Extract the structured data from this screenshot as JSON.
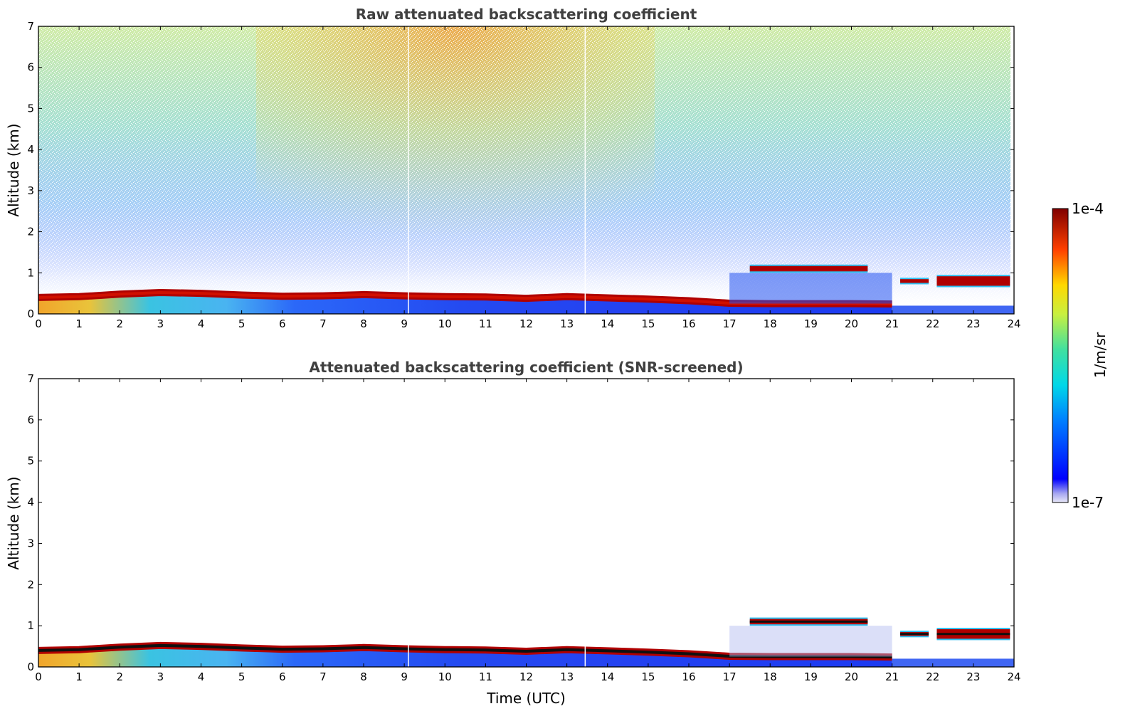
{
  "chart_data": [
    {
      "type": "heatmap",
      "title": "Raw attenuated backscattering coefficient",
      "xlabel": "",
      "ylabel": "Altitude (km)",
      "xlim": [
        0,
        24
      ],
      "ylim": [
        0,
        7
      ],
      "xticks": [
        0,
        1,
        2,
        3,
        4,
        5,
        6,
        7,
        8,
        9,
        10,
        11,
        12,
        13,
        14,
        15,
        16,
        17,
        18,
        19,
        20,
        21,
        22,
        23,
        24
      ],
      "yticks": [
        0,
        1,
        2,
        3,
        4,
        5,
        6,
        7
      ],
      "colorscale": "jet",
      "color_range": [
        "1e-7",
        "1e-4"
      ],
      "layers": {
        "boundary_layer_top_km": [
          {
            "t": 0,
            "h": 0.4
          },
          {
            "t": 1,
            "h": 0.42
          },
          {
            "t": 2,
            "h": 0.48
          },
          {
            "t": 3,
            "h": 0.52
          },
          {
            "t": 4,
            "h": 0.5
          },
          {
            "t": 5,
            "h": 0.46
          },
          {
            "t": 6,
            "h": 0.43
          },
          {
            "t": 7,
            "h": 0.44
          },
          {
            "t": 8,
            "h": 0.47
          },
          {
            "t": 9,
            "h": 0.44
          },
          {
            "t": 10,
            "h": 0.42
          },
          {
            "t": 11,
            "h": 0.41
          },
          {
            "t": 12,
            "h": 0.38
          },
          {
            "t": 13,
            "h": 0.42
          },
          {
            "t": 14,
            "h": 0.39
          },
          {
            "t": 15,
            "h": 0.36
          },
          {
            "t": 16,
            "h": 0.32
          },
          {
            "t": 17,
            "h": 0.26
          },
          {
            "t": 18,
            "h": 0.25
          },
          {
            "t": 19,
            "h": 0.25
          },
          {
            "t": 20,
            "h": 0.25
          },
          {
            "t": 21,
            "h": 0.24
          }
        ],
        "cloud_layers": [
          {
            "t_start": 17.5,
            "t_end": 20.4,
            "base_km": 1.0,
            "top_km": 1.2
          },
          {
            "t_start": 21.2,
            "t_end": 21.9,
            "base_km": 0.72,
            "top_km": 0.88
          },
          {
            "t_start": 22.1,
            "t_end": 23.9,
            "base_km": 0.65,
            "top_km": 0.95
          }
        ],
        "upper_signal": "noisy, warm colors strongest near 8-12 UTC above 5 km"
      }
    },
    {
      "type": "heatmap",
      "title": "Attenuated backscattering coefficient (SNR-screened)",
      "xlabel": "Time (UTC)",
      "ylabel": "Altitude (km)",
      "xlim": [
        0,
        24
      ],
      "ylim": [
        0,
        7
      ],
      "xticks": [
        0,
        1,
        2,
        3,
        4,
        5,
        6,
        7,
        8,
        9,
        10,
        11,
        12,
        13,
        14,
        15,
        16,
        17,
        18,
        19,
        20,
        21,
        22,
        23,
        24
      ],
      "yticks": [
        0,
        1,
        2,
        3,
        4,
        5,
        6,
        7
      ],
      "colorscale": "jet",
      "color_range": [
        "1e-7",
        "1e-4"
      ],
      "layers": {
        "boundary_layer_top_km": [
          {
            "t": 0,
            "h": 0.4
          },
          {
            "t": 1,
            "h": 0.42
          },
          {
            "t": 2,
            "h": 0.48
          },
          {
            "t": 3,
            "h": 0.52
          },
          {
            "t": 4,
            "h": 0.5
          },
          {
            "t": 5,
            "h": 0.46
          },
          {
            "t": 6,
            "h": 0.43
          },
          {
            "t": 7,
            "h": 0.44
          },
          {
            "t": 8,
            "h": 0.47
          },
          {
            "t": 9,
            "h": 0.44
          },
          {
            "t": 10,
            "h": 0.42
          },
          {
            "t": 11,
            "h": 0.41
          },
          {
            "t": 12,
            "h": 0.38
          },
          {
            "t": 13,
            "h": 0.42
          },
          {
            "t": 14,
            "h": 0.39
          },
          {
            "t": 15,
            "h": 0.36
          },
          {
            "t": 16,
            "h": 0.32
          },
          {
            "t": 17,
            "h": 0.26
          },
          {
            "t": 18,
            "h": 0.25
          },
          {
            "t": 19,
            "h": 0.25
          },
          {
            "t": 20,
            "h": 0.25
          },
          {
            "t": 21,
            "h": 0.24
          }
        ],
        "cloud_layers": [
          {
            "t_start": 17.5,
            "t_end": 20.4,
            "base_km": 1.0,
            "top_km": 1.2
          },
          {
            "t_start": 21.2,
            "t_end": 21.9,
            "base_km": 0.72,
            "top_km": 0.88
          },
          {
            "t_start": 22.1,
            "t_end": 23.9,
            "base_km": 0.65,
            "top_km": 0.95
          }
        ],
        "upper_signal": "screened out (white) above boundary layer"
      }
    }
  ],
  "colorbar": {
    "label": "1/m/sr",
    "max_label": "1e-4",
    "min_label": "1e-7"
  }
}
